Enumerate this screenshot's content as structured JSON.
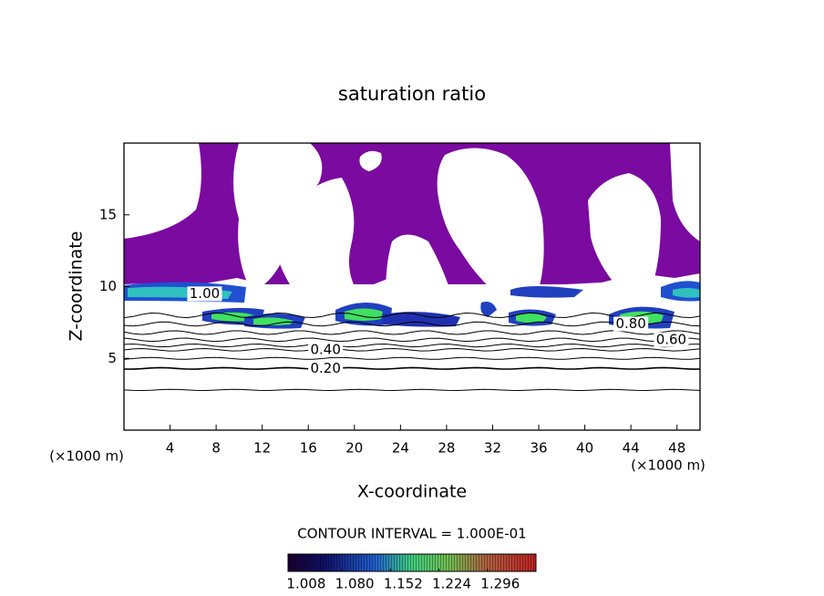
{
  "chart_data": {
    "type": "contour",
    "title": "saturation ratio",
    "xlabel": "X-coordinate",
    "ylabel": "Z-coordinate",
    "x_unit": "(×1000 m)",
    "y_unit": "(×1000 m)",
    "xlim": [
      0,
      50
    ],
    "ylim": [
      0,
      20
    ],
    "xticks": [
      4,
      8,
      12,
      16,
      20,
      24,
      28,
      32,
      36,
      40,
      44,
      48
    ],
    "yticks": [
      5,
      10,
      15
    ],
    "contour_levels": [
      0.1,
      0.2,
      0.3,
      0.4,
      0.5,
      0.6,
      0.7,
      0.8,
      0.9
    ],
    "contour_z": [
      2.8,
      4.3,
      5.0,
      5.6,
      5.9,
      6.3,
      6.8,
      7.4,
      8.0
    ],
    "level_labels": [
      {
        "value": 0.2,
        "label": "0.20"
      },
      {
        "value": 0.4,
        "label": "0.40"
      },
      {
        "value": 0.6,
        "label": "0.60"
      },
      {
        "value": 0.8,
        "label": "0.80"
      },
      {
        "value": 1.0,
        "label": "1.00"
      }
    ],
    "fill_color": "#7a0aa0",
    "annotation": "CONTOUR INTERVAL = 1.000E-01",
    "clim": [
      1.0,
      1.368
    ],
    "cticks": [
      1.008,
      {
        "value": 1.08,
        "label": "1.080"
      },
      1.152,
      1.224,
      1.296
    ]
  }
}
